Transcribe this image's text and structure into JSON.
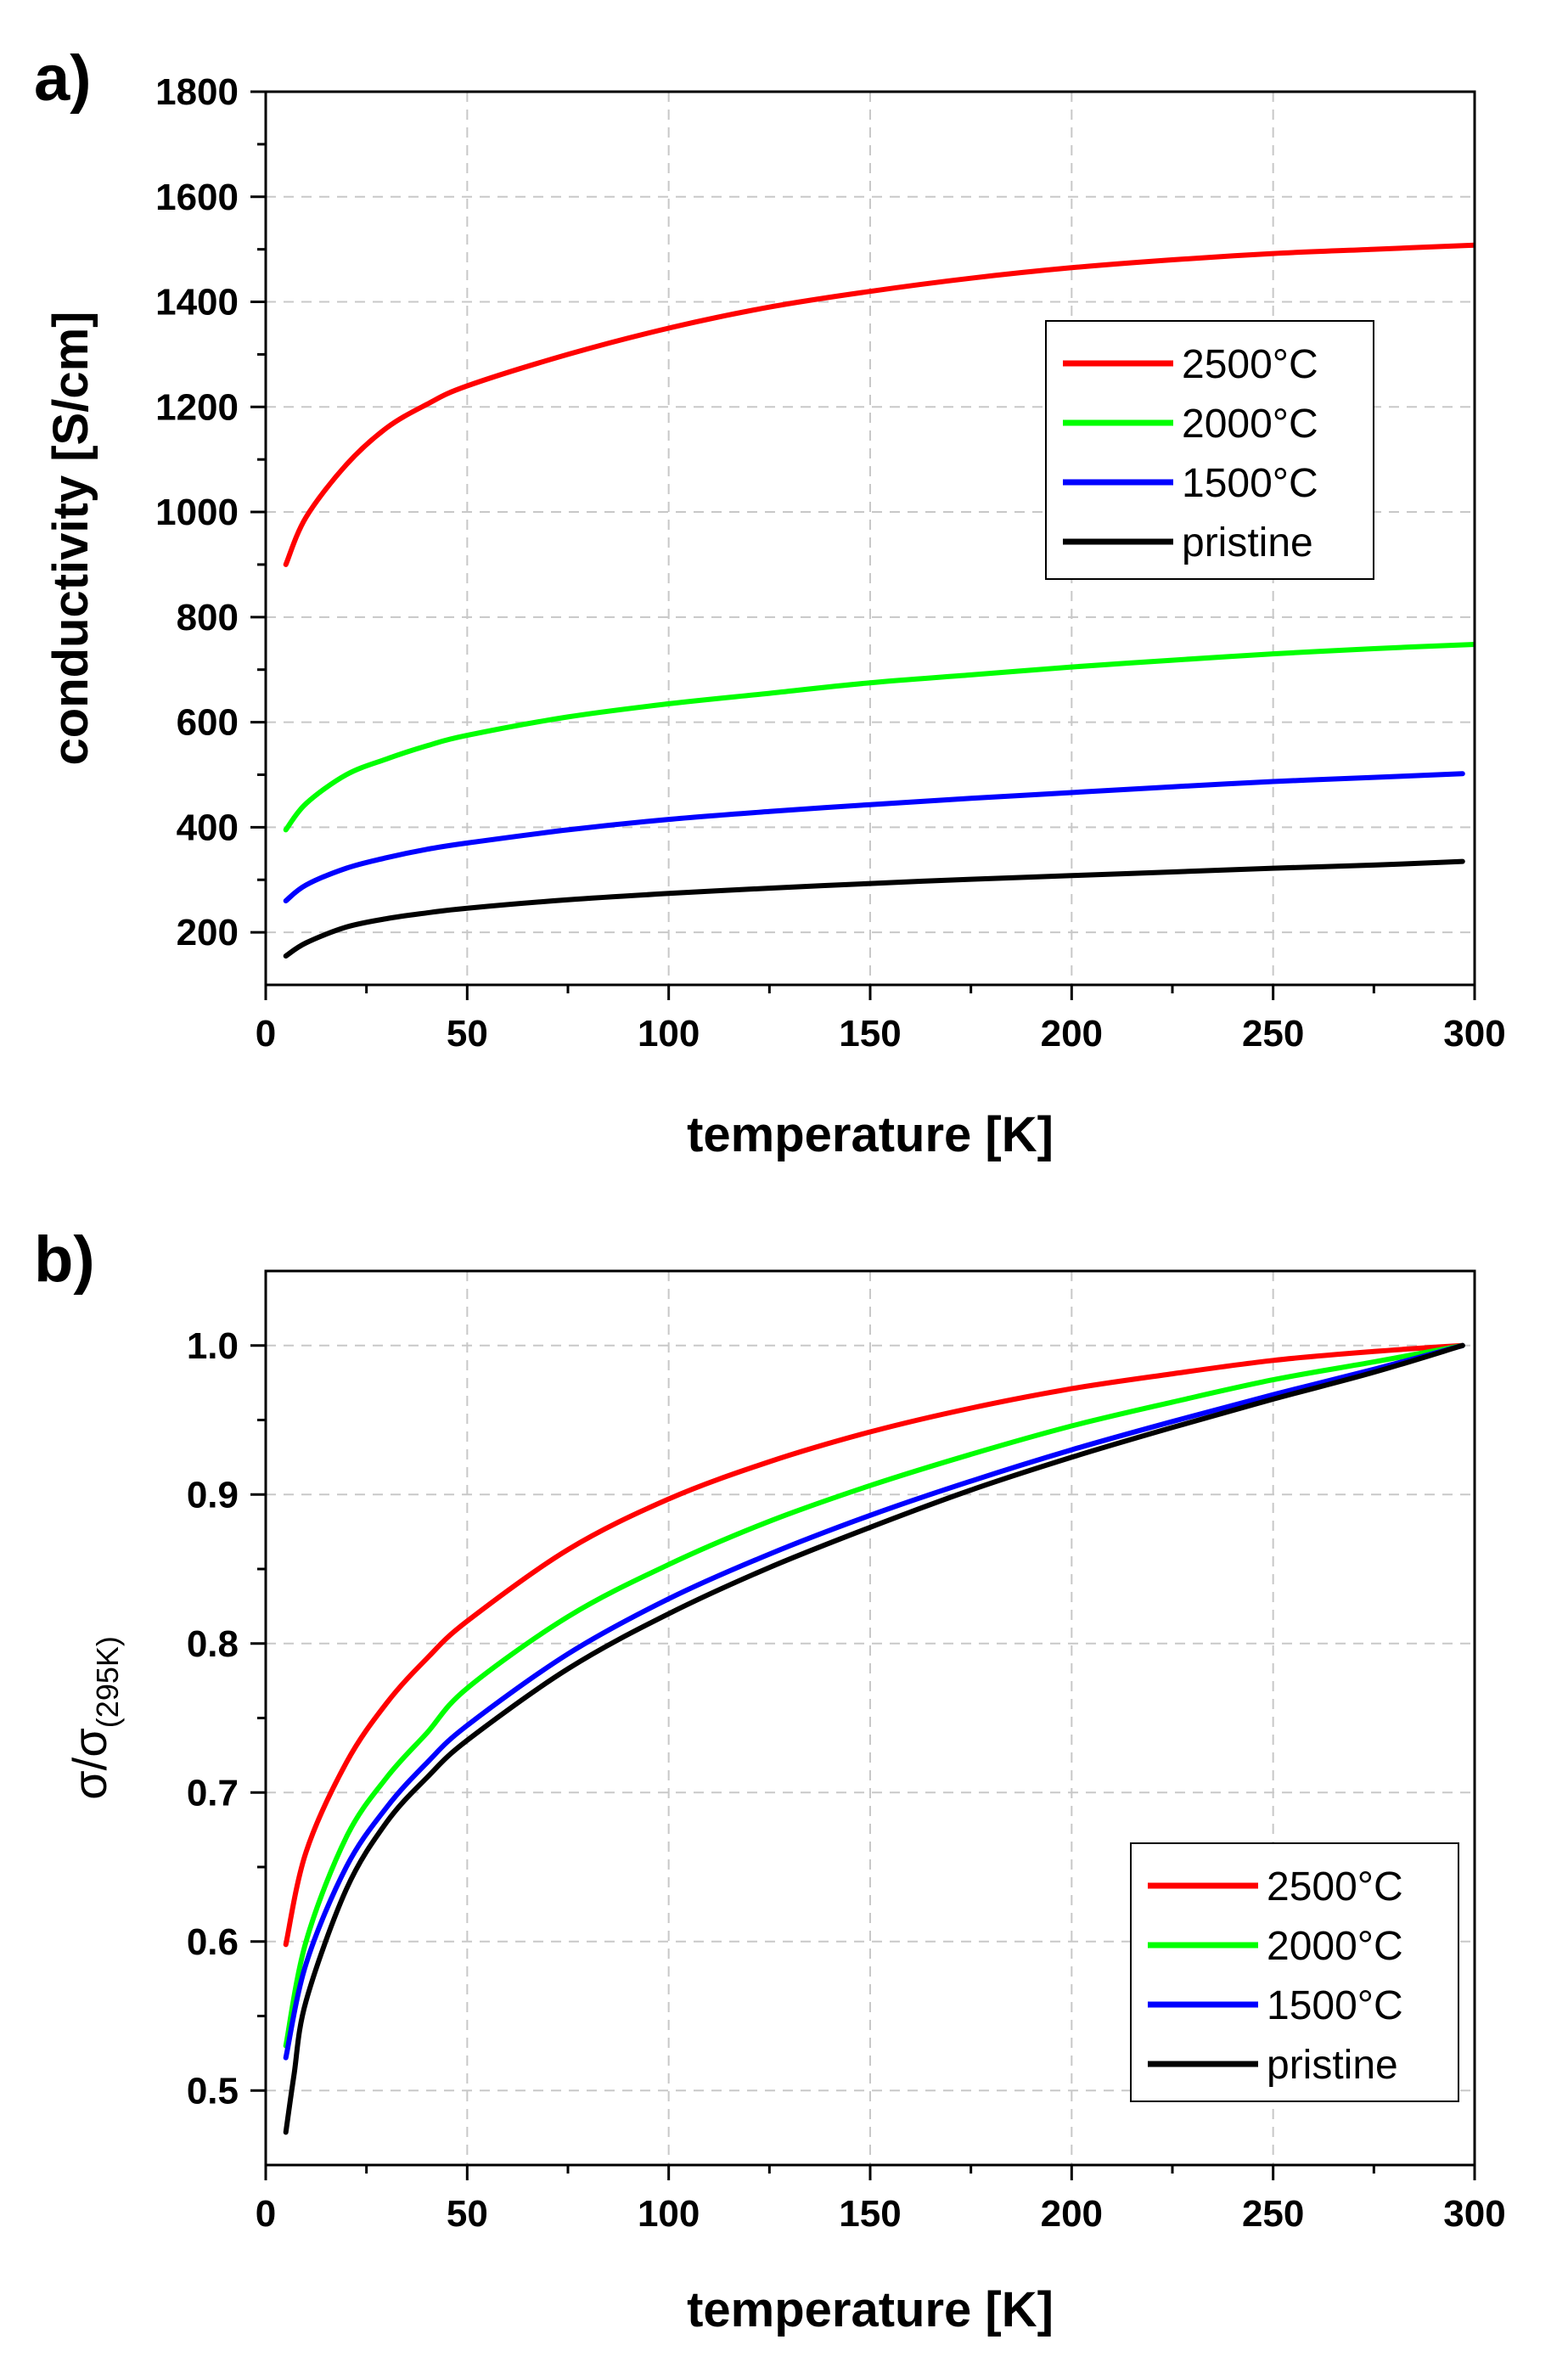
{
  "chart_data": [
    {
      "panel_label": "a)",
      "type": "line",
      "xlabel": "temperature [K]",
      "ylabel": "conductivity [S/cm]",
      "xlim": [
        0,
        300
      ],
      "ylim": [
        100,
        1800
      ],
      "xticks": [
        0,
        50,
        100,
        150,
        200,
        250,
        300
      ],
      "yticks": [
        200,
        400,
        600,
        800,
        1000,
        1200,
        1400,
        1600,
        1800
      ],
      "grid": true,
      "legend_position": "upper-right",
      "series": [
        {
          "name": "2500°C",
          "color": "#ff0000",
          "x": [
            5,
            10,
            20,
            30,
            40,
            50,
            75,
            100,
            125,
            150,
            175,
            200,
            225,
            250,
            275,
            300
          ],
          "y": [
            900,
            990,
            1090,
            1160,
            1205,
            1240,
            1300,
            1350,
            1390,
            1420,
            1445,
            1465,
            1480,
            1492,
            1500,
            1508
          ]
        },
        {
          "name": "2000°C",
          "color": "#00ff00",
          "x": [
            5,
            10,
            20,
            30,
            40,
            50,
            75,
            100,
            125,
            150,
            175,
            200,
            225,
            250,
            275,
            300
          ],
          "y": [
            395,
            445,
            500,
            530,
            555,
            575,
            610,
            635,
            655,
            675,
            690,
            705,
            718,
            730,
            740,
            748
          ]
        },
        {
          "name": "1500°C",
          "color": "#0000ff",
          "x": [
            5,
            10,
            20,
            30,
            40,
            50,
            75,
            100,
            125,
            150,
            175,
            200,
            225,
            250,
            275,
            297
          ],
          "y": [
            260,
            290,
            322,
            342,
            358,
            370,
            395,
            415,
            430,
            443,
            455,
            466,
            477,
            487,
            495,
            502
          ]
        },
        {
          "name": "pristine",
          "color": "#000000",
          "x": [
            5,
            10,
            20,
            30,
            40,
            50,
            75,
            100,
            125,
            150,
            175,
            200,
            225,
            250,
            275,
            297
          ],
          "y": [
            155,
            180,
            210,
            226,
            237,
            246,
            262,
            274,
            284,
            293,
            301,
            308,
            315,
            322,
            328,
            335
          ]
        }
      ]
    },
    {
      "panel_label": "b)",
      "type": "line",
      "xlabel": "temperature [K]",
      "ylabel": "σ/σ",
      "ylabel_subscript": "(295K)",
      "xlim": [
        0,
        300
      ],
      "ylim": [
        0.45,
        1.05
      ],
      "xticks": [
        0,
        50,
        100,
        150,
        200,
        250,
        300
      ],
      "yticks": [
        0.5,
        0.6,
        0.7,
        0.8,
        0.9,
        1.0
      ],
      "ytick_labels": [
        "0.5",
        "0.6",
        "0.7",
        "0.8",
        "0.9",
        "1.0"
      ],
      "grid": true,
      "legend_position": "lower-right",
      "series": [
        {
          "name": "2500°C",
          "color": "#ff0000",
          "x": [
            5,
            10,
            20,
            30,
            40,
            50,
            75,
            100,
            125,
            150,
            175,
            200,
            225,
            250,
            275,
            297
          ],
          "y": [
            0.598,
            0.66,
            0.72,
            0.76,
            0.79,
            0.815,
            0.863,
            0.897,
            0.922,
            0.942,
            0.958,
            0.971,
            0.981,
            0.99,
            0.996,
            1.0
          ]
        },
        {
          "name": "2000°C",
          "color": "#00ff00",
          "x": [
            5,
            10,
            20,
            30,
            40,
            50,
            75,
            100,
            125,
            150,
            175,
            200,
            225,
            250,
            275,
            297
          ],
          "y": [
            0.53,
            0.6,
            0.67,
            0.71,
            0.74,
            0.77,
            0.818,
            0.853,
            0.882,
            0.906,
            0.927,
            0.946,
            0.962,
            0.977,
            0.989,
            1.0
          ]
        },
        {
          "name": "1500°C",
          "color": "#0000ff",
          "x": [
            5,
            10,
            20,
            30,
            40,
            50,
            75,
            100,
            125,
            150,
            175,
            200,
            225,
            250,
            275,
            297
          ],
          "y": [
            0.522,
            0.585,
            0.65,
            0.69,
            0.72,
            0.745,
            0.793,
            0.83,
            0.86,
            0.886,
            0.909,
            0.93,
            0.949,
            0.967,
            0.984,
            1.0
          ]
        },
        {
          "name": "pristine",
          "color": "#000000",
          "x": [
            5,
            7,
            10,
            20,
            30,
            40,
            50,
            75,
            100,
            125,
            150,
            175,
            200,
            225,
            250,
            275,
            297
          ],
          "y": [
            0.472,
            0.51,
            0.56,
            0.635,
            0.68,
            0.71,
            0.735,
            0.783,
            0.82,
            0.851,
            0.878,
            0.903,
            0.925,
            0.945,
            0.964,
            0.982,
            1.0
          ]
        }
      ]
    }
  ]
}
